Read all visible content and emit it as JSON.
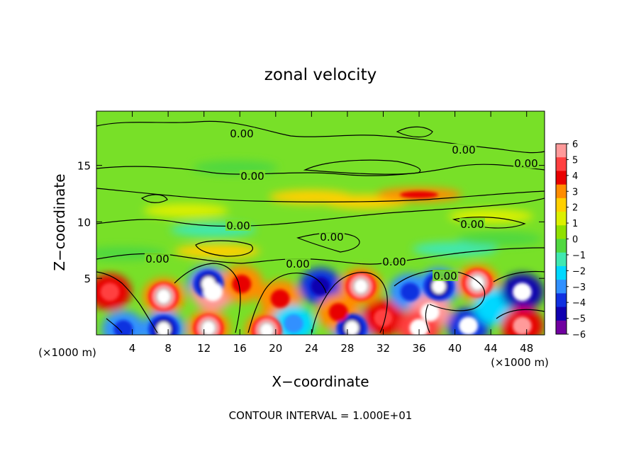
{
  "chart_data": {
    "type": "heatmap",
    "title": "zonal velocity",
    "xlabel": "X−coordinate",
    "ylabel": "Z−coordinate",
    "x_unit": "(×1000 m)",
    "y_unit": "(×1000 m)",
    "xlim": [
      0,
      50
    ],
    "ylim": [
      0,
      19.8
    ],
    "x_ticks": [
      4,
      8,
      12,
      16,
      20,
      24,
      28,
      32,
      36,
      40,
      44,
      48
    ],
    "y_ticks": [
      5,
      10,
      15
    ],
    "colorbar": {
      "ticks": [
        6,
        5,
        4,
        3,
        2,
        1,
        0,
        -1,
        -2,
        -3,
        -4,
        -5,
        -6
      ],
      "tick_labels": [
        "6",
        "5",
        "4",
        "3",
        "2",
        "1",
        "0",
        "−1",
        "−2",
        "−3",
        "−4",
        "−5",
        "−6"
      ],
      "colors": [
        "#ff9a9a",
        "#ff4040",
        "#e80000",
        "#ff8c00",
        "#ffd000",
        "#dcf000",
        "#90e000",
        "#50d840",
        "#40e8b0",
        "#00d8ff",
        "#3090ff",
        "#1030e0",
        "#1000b0",
        "#7000a0"
      ]
    },
    "contour_levels": [
      0.0
    ],
    "contour_labels": [
      "0.00",
      "0.00",
      "0.00",
      "0.00",
      "0.00",
      "0.00",
      "0.00",
      "0.00",
      "0.00",
      "0.00",
      "0.00",
      "0.00"
    ],
    "footer": "CONTOUR INTERVAL = 1.000E+01",
    "features": [
      {
        "x": 15.5,
        "z": 14.8,
        "value": -1.3
      },
      {
        "x": 10,
        "z": 11,
        "value": 0.6
      },
      {
        "x": 30,
        "z": 11.8,
        "value": 2.5
      },
      {
        "x": 24,
        "z": 12.2,
        "value": 1.8
      },
      {
        "x": 36,
        "z": 12.4,
        "value": 3.2
      },
      {
        "x": 13,
        "z": 9.3,
        "value": -1.5
      },
      {
        "x": 40,
        "z": 7.6,
        "value": -1.8
      },
      {
        "x": 13.5,
        "z": 7.4,
        "value": 2.2
      },
      {
        "x": 3,
        "z": 7.2,
        "value": -1.1
      },
      {
        "x": 7.5,
        "z": 3.4,
        "value": 8.0
      },
      {
        "x": 12.5,
        "z": 4.5,
        "value": -8.0
      },
      {
        "x": 13,
        "z": 3.8,
        "value": 6.0
      },
      {
        "x": 7.5,
        "z": 0.5,
        "value": -8.0
      },
      {
        "x": 12.5,
        "z": 0.6,
        "value": 8.0
      },
      {
        "x": 16.2,
        "z": 4.5,
        "value": 3.0
      },
      {
        "x": 19,
        "z": 0.4,
        "value": 7.0
      },
      {
        "x": 20.5,
        "z": 3.2,
        "value": 3.2
      },
      {
        "x": 22,
        "z": 1.0,
        "value": -3.0
      },
      {
        "x": 25,
        "z": 4.3,
        "value": -4.5
      },
      {
        "x": 29.5,
        "z": 4.3,
        "value": 8.0
      },
      {
        "x": 28.5,
        "z": 0.6,
        "value": -8.0
      },
      {
        "x": 27,
        "z": 2.0,
        "value": 3.0
      },
      {
        "x": 32,
        "z": 1.5,
        "value": 4.0
      },
      {
        "x": 35,
        "z": 3.8,
        "value": -3.5
      },
      {
        "x": 38.2,
        "z": 4.3,
        "value": -8.0
      },
      {
        "x": 42.5,
        "z": 4.6,
        "value": 8.0
      },
      {
        "x": 37.2,
        "z": 2.0,
        "value": 6.0
      },
      {
        "x": 36,
        "z": 0.6,
        "value": 5.0
      },
      {
        "x": 41.5,
        "z": 0.8,
        "value": -5.0
      },
      {
        "x": 44.5,
        "z": 2.5,
        "value": -2.5
      },
      {
        "x": 47.5,
        "z": 3.8,
        "value": -5.5
      },
      {
        "x": 47.5,
        "z": 0.8,
        "value": 4.5
      },
      {
        "x": 1.5,
        "z": 3.8,
        "value": 3.8
      },
      {
        "x": 3,
        "z": 0.5,
        "value": -3.5
      },
      {
        "x": 45,
        "z": 8.5,
        "value": -1.2
      },
      {
        "x": 44,
        "z": 10.5,
        "value": 1.0
      }
    ]
  }
}
